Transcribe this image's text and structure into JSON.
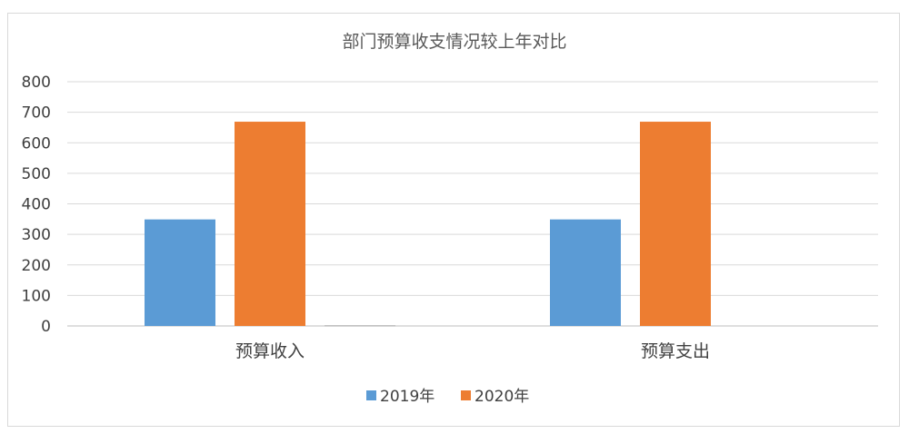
{
  "chart_data": {
    "type": "bar",
    "title": "部门预算收支情况较上年对比",
    "xlabel": "",
    "ylabel": "",
    "categories": [
      "预算收入",
      "预算支出"
    ],
    "series": [
      {
        "name": "2019年",
        "color": "#5b9bd5",
        "values": [
          349,
          349
        ]
      },
      {
        "name": "2020年",
        "color": "#ed7d31",
        "values": [
          669,
          669
        ]
      },
      {
        "name": "",
        "color": "#a5a5a5",
        "values": [
          2,
          0
        ]
      }
    ],
    "ylim": [
      0,
      800
    ],
    "yticks": [
      "0",
      "100",
      "200",
      "300",
      "400",
      "500",
      "600",
      "700",
      "800"
    ],
    "grid": true,
    "legend": "bottom"
  }
}
